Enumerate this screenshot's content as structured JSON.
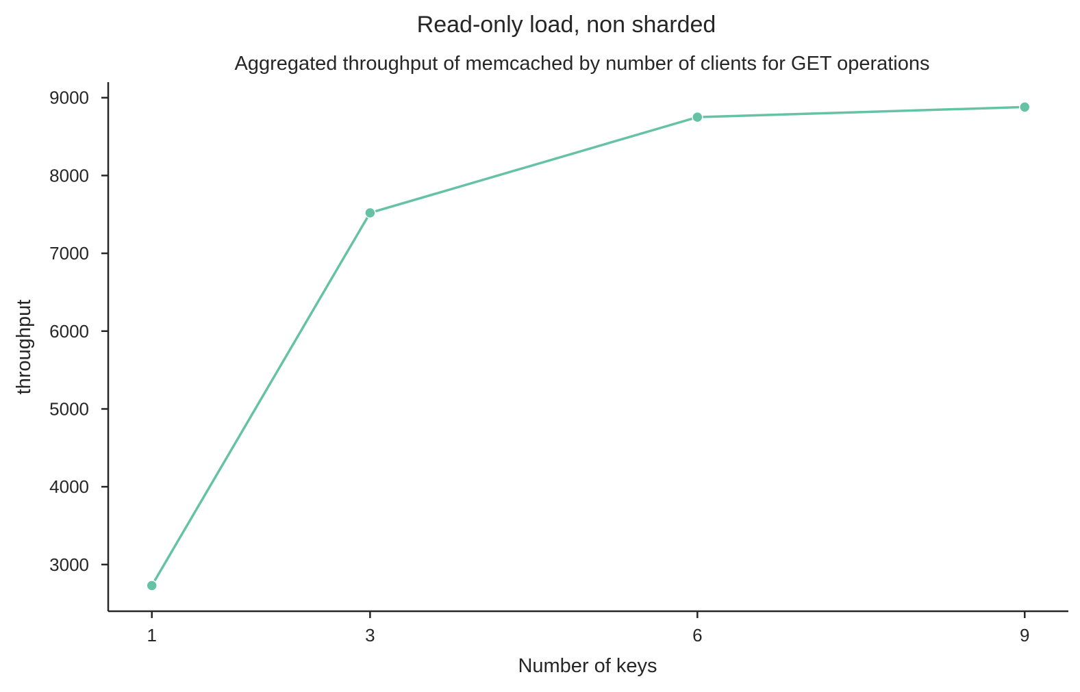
{
  "chart_data": {
    "type": "line",
    "title": "Read-only load, non sharded",
    "subtitle": "Aggregated throughput of memcached by number of clients for GET operations",
    "xlabel": "Number of keys",
    "ylabel": "throughput",
    "x": [
      1,
      3,
      6,
      9
    ],
    "x_ticks": [
      "1",
      "3",
      "6",
      "9"
    ],
    "y_ticks": [
      "3000",
      "4000",
      "5000",
      "6000",
      "7000",
      "8000",
      "9000"
    ],
    "xlim": [
      0.6,
      9.4
    ],
    "ylim": [
      2400,
      9200
    ],
    "grid": false,
    "legend": "none",
    "color": "#66c2a5",
    "series": [
      {
        "values": [
          2730,
          7520,
          8750,
          8880
        ]
      }
    ]
  }
}
